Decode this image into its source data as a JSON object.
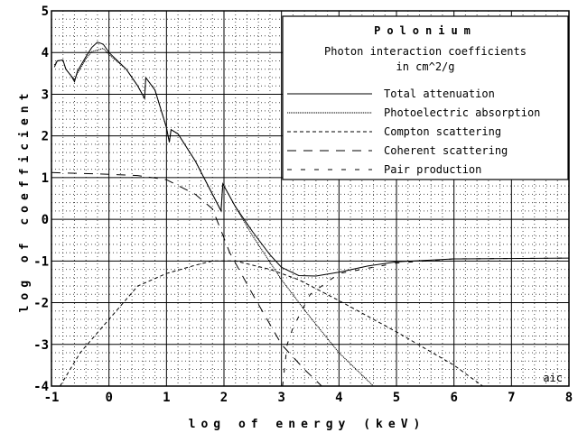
{
  "chart_data": {
    "type": "line",
    "title": "Polonium",
    "subtitle": "Photon interaction coefficients",
    "units": "in cm^2/g",
    "xlabel": "log of energy (keV)",
    "ylabel": "log of coefficient",
    "xlim": [
      -1,
      8
    ],
    "ylim": [
      -4,
      5
    ],
    "xticks": [
      "-1",
      "0",
      "1",
      "2",
      "3",
      "4",
      "5",
      "6",
      "7",
      "8"
    ],
    "yticks": [
      "5",
      "4",
      "3",
      "2",
      "1",
      "0",
      "-1",
      "-2",
      "-3",
      "-4"
    ],
    "grid": true,
    "legend_position": "top-right",
    "watermark": "aic",
    "series": [
      {
        "name": "Total attenuation",
        "dash": "solid",
        "points": [
          [
            -0.95,
            3.65
          ],
          [
            -0.9,
            3.8
          ],
          [
            -0.8,
            3.82
          ],
          [
            -0.75,
            3.6
          ],
          [
            -0.65,
            3.42
          ],
          [
            -0.6,
            3.3
          ],
          [
            -0.55,
            3.55
          ],
          [
            -0.4,
            3.9
          ],
          [
            -0.3,
            4.12
          ],
          [
            -0.2,
            4.25
          ],
          [
            -0.1,
            4.2
          ],
          [
            0,
            4.0
          ],
          [
            0.3,
            3.6
          ],
          [
            0.5,
            3.2
          ],
          [
            0.62,
            2.9
          ],
          [
            0.64,
            3.4
          ],
          [
            0.8,
            3.1
          ],
          [
            1.0,
            2.2
          ],
          [
            1.05,
            1.85
          ],
          [
            1.08,
            2.15
          ],
          [
            1.2,
            2.05
          ],
          [
            1.5,
            1.4
          ],
          [
            1.8,
            0.6
          ],
          [
            1.95,
            0.2
          ],
          [
            1.98,
            0.85
          ],
          [
            2.2,
            0.3
          ],
          [
            2.5,
            -0.3
          ],
          [
            2.8,
            -0.85
          ],
          [
            3.0,
            -1.15
          ],
          [
            3.3,
            -1.35
          ],
          [
            3.6,
            -1.36
          ],
          [
            4.0,
            -1.27
          ],
          [
            4.5,
            -1.12
          ],
          [
            5.0,
            -1.02
          ],
          [
            6.0,
            -0.95
          ],
          [
            8.0,
            -0.93
          ]
        ]
      },
      {
        "name": "Photoelectric absorption",
        "dash": "fine",
        "points": [
          [
            -0.95,
            3.7
          ],
          [
            -0.9,
            3.8
          ],
          [
            -0.8,
            3.82
          ],
          [
            -0.75,
            3.6
          ],
          [
            -0.6,
            3.35
          ],
          [
            -0.55,
            3.5
          ],
          [
            -0.4,
            3.85
          ],
          [
            -0.3,
            4.02
          ],
          [
            -0.1,
            4.1
          ],
          [
            0,
            3.95
          ],
          [
            0.3,
            3.6
          ],
          [
            0.5,
            3.2
          ],
          [
            0.62,
            2.9
          ],
          [
            0.64,
            3.4
          ],
          [
            0.8,
            3.1
          ],
          [
            1.0,
            2.2
          ],
          [
            1.05,
            1.85
          ],
          [
            1.08,
            2.15
          ],
          [
            1.2,
            2.05
          ],
          [
            1.5,
            1.4
          ],
          [
            1.8,
            0.6
          ],
          [
            1.95,
            0.2
          ],
          [
            1.98,
            0.85
          ],
          [
            2.2,
            0.3
          ],
          [
            2.5,
            -0.4
          ],
          [
            3.0,
            -1.45
          ],
          [
            3.5,
            -2.35
          ],
          [
            4.0,
            -3.2
          ],
          [
            4.6,
            -4.0
          ]
        ]
      },
      {
        "name": "Compton scattering",
        "dash": "short",
        "points": [
          [
            -0.85,
            -4.0
          ],
          [
            -0.5,
            -3.2
          ],
          [
            0,
            -2.4
          ],
          [
            0.5,
            -1.6
          ],
          [
            1.0,
            -1.3
          ],
          [
            1.5,
            -1.1
          ],
          [
            1.8,
            -1.0
          ],
          [
            2.2,
            -1.0
          ],
          [
            2.8,
            -1.2
          ],
          [
            3.3,
            -1.45
          ],
          [
            4.0,
            -1.95
          ],
          [
            5.0,
            -2.7
          ],
          [
            6.0,
            -3.5
          ],
          [
            6.5,
            -4.0
          ]
        ]
      },
      {
        "name": "Coherent scattering",
        "dash": "long",
        "points": [
          [
            -1.0,
            1.12
          ],
          [
            0,
            1.08
          ],
          [
            0.5,
            1.05
          ],
          [
            1.0,
            0.95
          ],
          [
            1.5,
            0.6
          ],
          [
            1.8,
            0.25
          ],
          [
            2.1,
            -0.8
          ],
          [
            2.5,
            -1.8
          ],
          [
            3.0,
            -3.0
          ],
          [
            3.4,
            -3.6
          ],
          [
            3.7,
            -4.0
          ]
        ]
      },
      {
        "name": "Pair production",
        "dash": "medium",
        "points": [
          [
            3.02,
            -4.0
          ],
          [
            3.1,
            -3.0
          ],
          [
            3.2,
            -2.6
          ],
          [
            3.5,
            -1.8
          ],
          [
            4.0,
            -1.3
          ],
          [
            5.0,
            -1.05
          ],
          [
            6.0,
            -0.95
          ],
          [
            8.0,
            -0.93
          ]
        ]
      }
    ]
  }
}
